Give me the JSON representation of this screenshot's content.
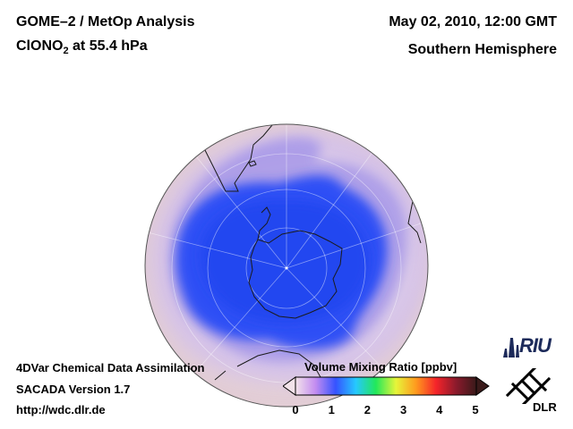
{
  "header": {
    "title_prefix": "GOME–2 / MetOp Analysis",
    "species_main": "ClONO",
    "species_sub": "2",
    "species_suffix": " at 55.4 hPa",
    "datetime": "May 02, 2010, 12:00 GMT",
    "region": "Southern Hemisphere"
  },
  "footer": {
    "line1": "4DVar Chemical Data Assimilation",
    "line2": "SACADA Version 1.7",
    "line3": "http://wdc.dlr.de"
  },
  "colorbar": {
    "title": "Volume Mixing Ratio [ppbv]",
    "ticks": [
      "0",
      "1",
      "2",
      "3",
      "4",
      "5"
    ],
    "min": 0,
    "max": 5,
    "stops": [
      "#f3e3ea",
      "#c38cf0",
      "#3553ff",
      "#26c8ff",
      "#22e85a",
      "#e6f53a",
      "#ff9a1e",
      "#f5242a",
      "#8a1a2c",
      "#3a1a1a"
    ]
  },
  "logos": {
    "riu": "RIU",
    "dlr": "DLR"
  },
  "map": {
    "projection": "orthographic-south-pole",
    "colors": {
      "background": "#e9d9de",
      "ring": "#b6a0ee",
      "core": "#2d4ef6"
    }
  }
}
